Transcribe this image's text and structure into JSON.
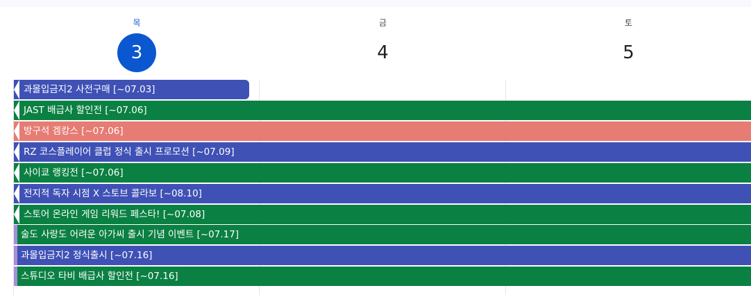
{
  "days": [
    {
      "dow": "목",
      "date": "3",
      "today": true
    },
    {
      "dow": "금",
      "date": "4",
      "today": false
    },
    {
      "dow": "토",
      "date": "5",
      "today": false
    }
  ],
  "colors": {
    "today_blue": "#0b57d0",
    "indigo": "#3f51b5",
    "green": "#0b8043",
    "salmon": "#e67c73",
    "lavender": "#a48fd6"
  },
  "events": [
    {
      "title": "과몰입금지2 사전구매 [~07.03]",
      "color": "indigo"
    },
    {
      "title": "JAST 배급사 할인전 [~07.06]",
      "color": "green"
    },
    {
      "title": "방구석 겜캉스 [~07.06]",
      "color": "salmon"
    },
    {
      "title": "RZ 코스플레이어 클럽 정식 출시 프로모션 [~07.09]",
      "color": "indigo"
    },
    {
      "title": "사이쿄 랭킹전 [~07.06]",
      "color": "green"
    },
    {
      "title": "전지적 독자 시점 X 스토브 콜라보 [~08.10]",
      "color": "indigo"
    },
    {
      "title": "스토어 온라인 게임 리워드 페스타! [~07.08]",
      "color": "green"
    },
    {
      "title": "술도 사랑도 어려운 아가씨 출시 기념 이벤트 [~07.17]",
      "color": "green"
    },
    {
      "title": "과몰입금지2 정식출시 [~07.16]",
      "color": "indigo"
    },
    {
      "title": "스튜디오 타비 배급사 할인전 [~07.16]",
      "color": "green"
    }
  ]
}
